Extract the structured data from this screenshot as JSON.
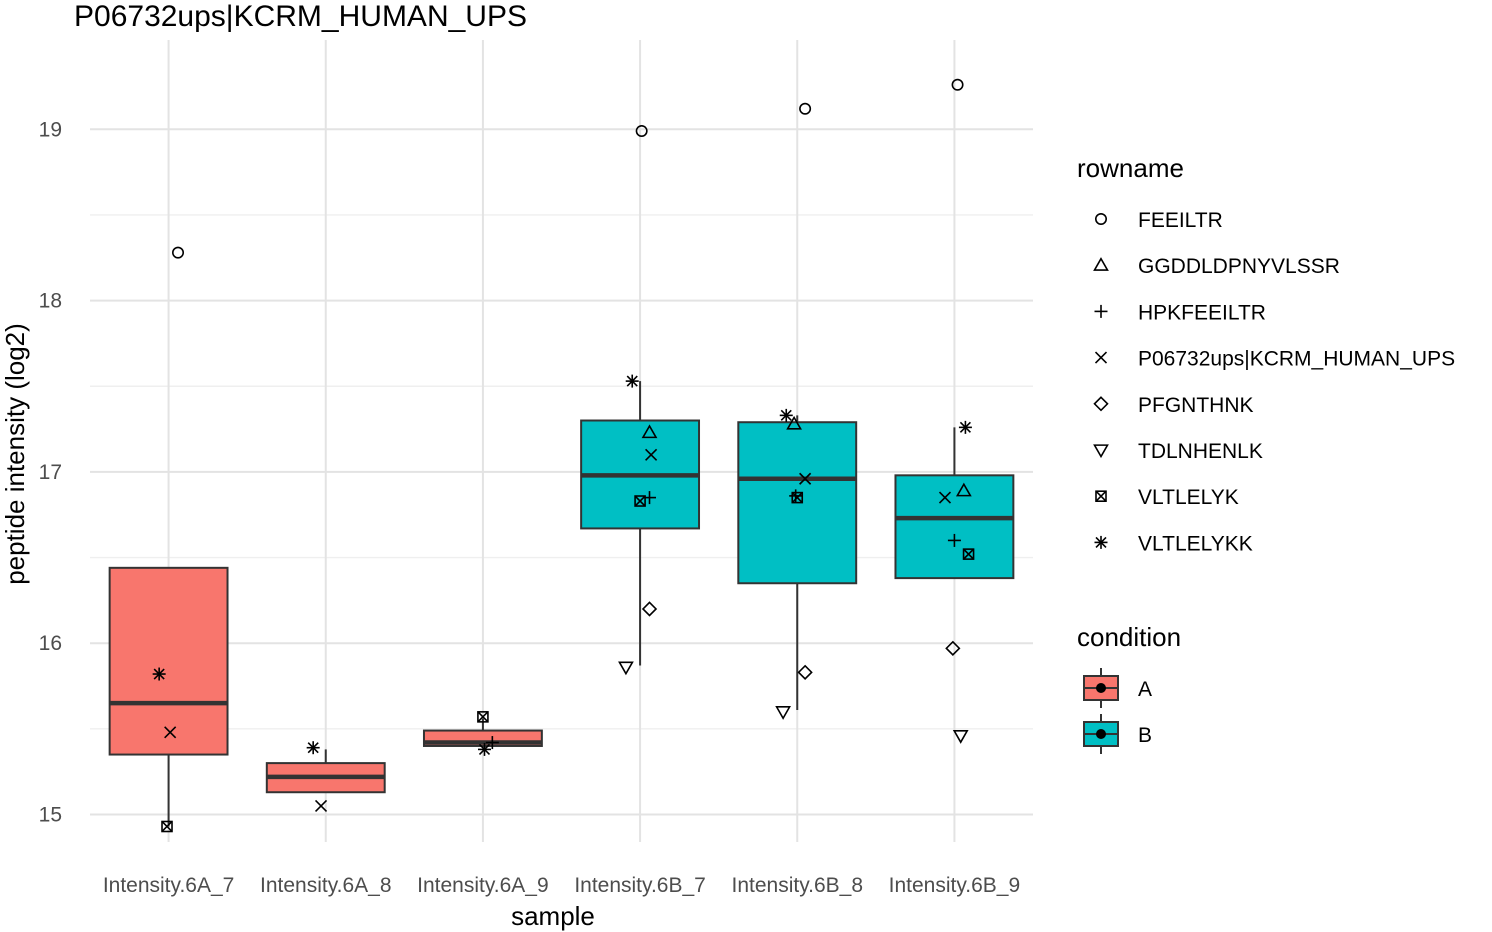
{
  "chart_data": {
    "type": "box",
    "title": "P06732ups|KCRM_HUMAN_UPS",
    "xlabel": "sample",
    "ylabel": "peptide intensity (log2)",
    "categories": [
      "Intensity.6A_7",
      "Intensity.6A_8",
      "Intensity.6A_9",
      "Intensity.6B_7",
      "Intensity.6B_8",
      "Intensity.6B_9"
    ],
    "condition": [
      "A",
      "A",
      "A",
      "B",
      "B",
      "B"
    ],
    "yticks": [
      15,
      16,
      17,
      18,
      19
    ],
    "ytick_labels": [
      "15",
      "16",
      "17",
      "18",
      "19"
    ],
    "ylim": [
      14.8,
      19.5
    ],
    "grid": true,
    "boxes": [
      {
        "sample": "Intensity.6A_7",
        "lower_whisker": 14.93,
        "q1": 15.35,
        "median": 15.65,
        "q3": 16.44,
        "upper_whisker": 16.44
      },
      {
        "sample": "Intensity.6A_8",
        "lower_whisker": 15.13,
        "q1": 15.13,
        "median": 15.22,
        "q3": 15.3,
        "upper_whisker": 15.38
      },
      {
        "sample": "Intensity.6A_9",
        "lower_whisker": 15.4,
        "q1": 15.4,
        "median": 15.42,
        "q3": 15.49,
        "upper_whisker": 15.56
      },
      {
        "sample": "Intensity.6B_7",
        "lower_whisker": 15.87,
        "q1": 16.67,
        "median": 16.98,
        "q3": 17.3,
        "upper_whisker": 17.53
      },
      {
        "sample": "Intensity.6B_8",
        "lower_whisker": 15.61,
        "q1": 16.35,
        "median": 16.96,
        "q3": 17.29,
        "upper_whisker": 17.33
      },
      {
        "sample": "Intensity.6B_9",
        "lower_whisker": 16.38,
        "q1": 16.38,
        "median": 16.73,
        "q3": 16.98,
        "upper_whisker": 17.26
      }
    ],
    "points": [
      {
        "sample": "Intensity.6A_7",
        "rowname": "FEEILTR",
        "y": 18.28,
        "jitter": 0.06
      },
      {
        "sample": "Intensity.6A_7",
        "rowname": "VLTLELYKK",
        "y": 15.82,
        "jitter": -0.06
      },
      {
        "sample": "Intensity.6A_7",
        "rowname": "P06732ups|KCRM_HUMAN_UPS",
        "y": 15.48,
        "jitter": 0.01
      },
      {
        "sample": "Intensity.6A_7",
        "rowname": "VLTLELYK",
        "y": 14.93,
        "jitter": -0.01
      },
      {
        "sample": "Intensity.6A_8",
        "rowname": "VLTLELYKK",
        "y": 15.39,
        "jitter": -0.08
      },
      {
        "sample": "Intensity.6A_8",
        "rowname": "P06732ups|KCRM_HUMAN_UPS",
        "y": 15.05,
        "jitter": -0.03
      },
      {
        "sample": "Intensity.6A_9",
        "rowname": "VLTLELYK",
        "y": 15.57,
        "jitter": 0.0
      },
      {
        "sample": "Intensity.6A_9",
        "rowname": "HPKFEEILTR",
        "y": 15.42,
        "jitter": 0.06
      },
      {
        "sample": "Intensity.6A_9",
        "rowname": "VLTLELYKK",
        "y": 15.38,
        "jitter": 0.01
      },
      {
        "sample": "Intensity.6B_7",
        "rowname": "FEEILTR",
        "y": 18.99,
        "jitter": 0.01
      },
      {
        "sample": "Intensity.6B_7",
        "rowname": "VLTLELYKK",
        "y": 17.53,
        "jitter": -0.05
      },
      {
        "sample": "Intensity.6B_7",
        "rowname": "GGDDLDPNYVLSSR",
        "y": 17.23,
        "jitter": 0.06
      },
      {
        "sample": "Intensity.6B_7",
        "rowname": "P06732ups|KCRM_HUMAN_UPS",
        "y": 17.1,
        "jitter": 0.07
      },
      {
        "sample": "Intensity.6B_7",
        "rowname": "HPKFEEILTR",
        "y": 16.85,
        "jitter": 0.06
      },
      {
        "sample": "Intensity.6B_7",
        "rowname": "VLTLELYK",
        "y": 16.83,
        "jitter": 0.0
      },
      {
        "sample": "Intensity.6B_7",
        "rowname": "PFGNTHNK",
        "y": 16.2,
        "jitter": 0.06
      },
      {
        "sample": "Intensity.6B_7",
        "rowname": "TDLNHENLK",
        "y": 15.86,
        "jitter": -0.09
      },
      {
        "sample": "Intensity.6B_8",
        "rowname": "FEEILTR",
        "y": 19.12,
        "jitter": 0.05
      },
      {
        "sample": "Intensity.6B_8",
        "rowname": "VLTLELYKK",
        "y": 17.33,
        "jitter": -0.07
      },
      {
        "sample": "Intensity.6B_8",
        "rowname": "GGDDLDPNYVLSSR",
        "y": 17.28,
        "jitter": -0.02
      },
      {
        "sample": "Intensity.6B_8",
        "rowname": "P06732ups|KCRM_HUMAN_UPS",
        "y": 16.96,
        "jitter": 0.05
      },
      {
        "sample": "Intensity.6B_8",
        "rowname": "HPKFEEILTR",
        "y": 16.86,
        "jitter": -0.01
      },
      {
        "sample": "Intensity.6B_8",
        "rowname": "VLTLELYK",
        "y": 16.85,
        "jitter": 0.0
      },
      {
        "sample": "Intensity.6B_8",
        "rowname": "PFGNTHNK",
        "y": 15.83,
        "jitter": 0.05
      },
      {
        "sample": "Intensity.6B_8",
        "rowname": "TDLNHENLK",
        "y": 15.6,
        "jitter": -0.09
      },
      {
        "sample": "Intensity.6B_9",
        "rowname": "FEEILTR",
        "y": 19.26,
        "jitter": 0.02
      },
      {
        "sample": "Intensity.6B_9",
        "rowname": "VLTLELYKK",
        "y": 17.26,
        "jitter": 0.07
      },
      {
        "sample": "Intensity.6B_9",
        "rowname": "GGDDLDPNYVLSSR",
        "y": 16.89,
        "jitter": 0.06
      },
      {
        "sample": "Intensity.6B_9",
        "rowname": "P06732ups|KCRM_HUMAN_UPS",
        "y": 16.85,
        "jitter": -0.06
      },
      {
        "sample": "Intensity.6B_9",
        "rowname": "HPKFEEILTR",
        "y": 16.6,
        "jitter": 0.0
      },
      {
        "sample": "Intensity.6B_9",
        "rowname": "VLTLELYK",
        "y": 16.52,
        "jitter": 0.09
      },
      {
        "sample": "Intensity.6B_9",
        "rowname": "PFGNTHNK",
        "y": 15.97,
        "jitter": -0.01
      },
      {
        "sample": "Intensity.6B_9",
        "rowname": "TDLNHENLK",
        "y": 15.46,
        "jitter": 0.04
      }
    ],
    "legend_rowname": {
      "title": "rowname",
      "entries": [
        {
          "label": "FEEILTR",
          "shape": "circle"
        },
        {
          "label": "GGDDLDPNYVLSSR",
          "shape": "triangle-up"
        },
        {
          "label": "HPKFEEILTR",
          "shape": "plus"
        },
        {
          "label": "P06732ups|KCRM_HUMAN_UPS",
          "shape": "cross"
        },
        {
          "label": "PFGNTHNK",
          "shape": "diamond"
        },
        {
          "label": "TDLNHENLK",
          "shape": "triangle-down"
        },
        {
          "label": "VLTLELYK",
          "shape": "square-cross"
        },
        {
          "label": "VLTLELYKK",
          "shape": "asterisk"
        }
      ]
    },
    "legend_condition": {
      "title": "condition",
      "entries": [
        {
          "label": "A",
          "color": "#F8766D"
        },
        {
          "label": "B",
          "color": "#00BFC4"
        }
      ]
    },
    "legend_placement": "right",
    "colors": {
      "A": "#F8766D",
      "B": "#00BFC4"
    }
  }
}
